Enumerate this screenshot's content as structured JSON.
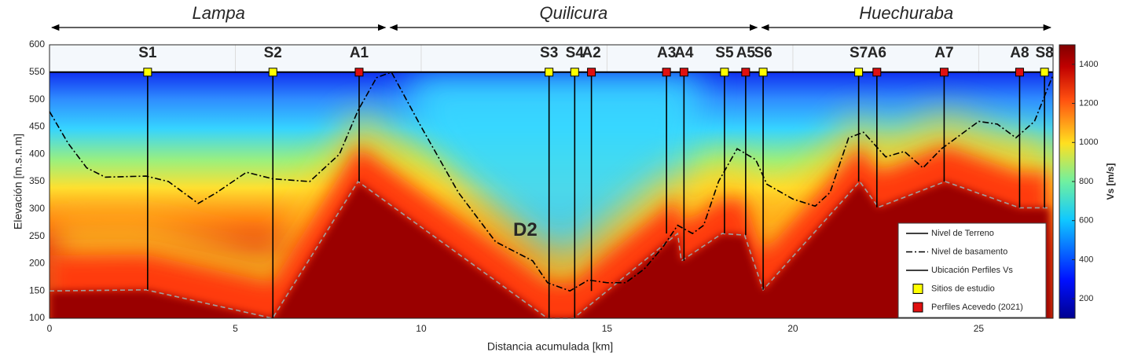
{
  "chart_data": {
    "type": "profile",
    "xlabel": "Distancia acumulada [km]",
    "ylabel": "Elevación [m.s.n.m]",
    "xlim": [
      0,
      27
    ],
    "ylim": [
      100,
      600
    ],
    "xticks": [
      0,
      5,
      10,
      15,
      20,
      25
    ],
    "yticks": [
      100,
      150,
      200,
      250,
      300,
      350,
      400,
      450,
      500,
      550,
      600
    ],
    "grid": true,
    "regions": [
      {
        "label": "Lampa",
        "start": 0,
        "end": 9.1
      },
      {
        "label": "Quilicura",
        "start": 9.1,
        "end": 19.1
      },
      {
        "label": "Huechuraba",
        "start": 19.1,
        "end": 27
      }
    ],
    "terrain": {
      "name": "Nivel de Terreno",
      "color": "#000000",
      "x": [
        0,
        27
      ],
      "values": [
        550,
        550
      ]
    },
    "basement": {
      "name": "Nivel de basamento",
      "color": "#000000",
      "x": [
        0,
        0.5,
        1,
        1.5,
        2.6,
        3.2,
        4,
        4.5,
        5.3,
        6,
        7,
        7.8,
        8.3,
        8.8,
        9.2,
        10,
        11,
        12,
        13,
        13.4,
        14,
        14.5,
        15,
        15.5,
        16,
        16.5,
        16.9,
        17.3,
        17.6,
        18,
        18.5,
        19,
        19.3,
        20,
        20.6,
        21,
        21.5,
        21.9,
        22.5,
        23,
        23.5,
        24,
        25,
        25.5,
        26,
        26.5,
        27
      ],
      "values": [
        478,
        420,
        375,
        358,
        360,
        350,
        310,
        330,
        367,
        355,
        350,
        400,
        480,
        540,
        550,
        450,
        330,
        240,
        205,
        165,
        150,
        170,
        165,
        165,
        190,
        230,
        270,
        255,
        270,
        350,
        410,
        390,
        345,
        318,
        305,
        330,
        430,
        440,
        395,
        405,
        375,
        410,
        460,
        455,
        430,
        460,
        545
      ]
    },
    "interface": {
      "color": "#a0a0a0",
      "x": [
        0,
        2.6,
        6,
        8.3,
        13.4,
        14.1,
        16.9,
        17,
        18.1,
        18.7,
        19.2,
        21.8,
        22.3,
        24.1,
        26.1,
        26.9
      ],
      "values": [
        150,
        152,
        100,
        350,
        100,
        100,
        255,
        205,
        255,
        252,
        152,
        350,
        303,
        350,
        302,
        302
      ]
    },
    "profiles_name": "Ubicación Perfiles Vs",
    "series": [
      {
        "name": "Sitios de estudio",
        "color": "#ffff00",
        "labels": [
          "S1",
          "S2",
          "S3",
          "S4",
          "S5",
          "S6",
          "S7",
          "S8"
        ],
        "x": [
          2.64,
          6.01,
          13.44,
          14.13,
          18.16,
          19.2,
          21.77,
          26.77
        ],
        "depths": [
          152,
          100,
          100,
          100,
          255,
          152,
          350,
          302
        ]
      },
      {
        "name": "Perfiles Acevedo (2021)",
        "color": "#e01010",
        "labels": [
          "A1",
          "A2",
          "A3",
          "A4",
          "A5",
          "A6",
          "A7",
          "A8"
        ],
        "x": [
          8.33,
          14.58,
          16.6,
          17.07,
          18.73,
          22.26,
          24.07,
          26.1
        ],
        "depths": [
          350,
          150,
          255,
          205,
          252,
          303,
          350,
          302
        ]
      }
    ],
    "annotation": {
      "text": "D2",
      "x": 12.8,
      "y": 260
    },
    "colorbar": {
      "label": "Vs [m/s]",
      "lim": [
        100,
        1500
      ],
      "ticks": [
        200,
        400,
        600,
        800,
        1000,
        1200,
        1400
      ]
    }
  }
}
